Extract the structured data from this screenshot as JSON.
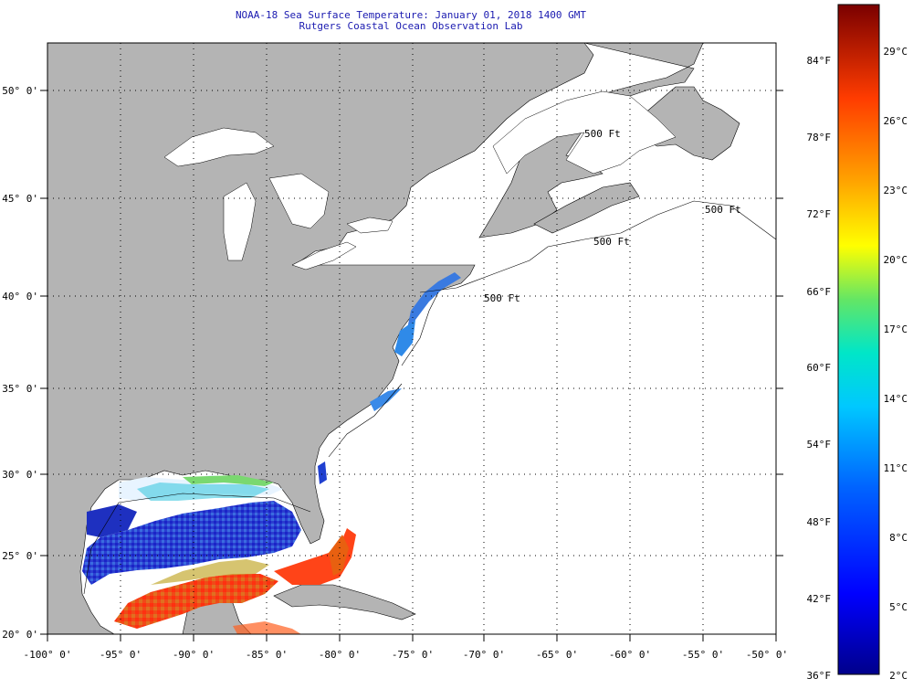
{
  "header": {
    "title": "NOAA-18 Sea Surface Temperature:  January 01, 2018 1400 GMT",
    "subtitle": "Rutgers Coastal Ocean Observation Lab"
  },
  "map": {
    "lon_ticks": [
      "-100° 0'",
      "-95° 0'",
      "-90° 0'",
      "-85° 0'",
      "-80° 0'",
      "-75° 0'",
      "-70° 0'",
      "-65° 0'",
      "-60° 0'",
      "-55° 0'",
      "-50° 0'"
    ],
    "lat_ticks": [
      "50° 0'",
      "45° 0'",
      "40° 0'",
      "35° 0'",
      "30° 0'",
      "25° 0'",
      "20° 0'"
    ],
    "isobath_labels": [
      "500 Ft",
      "500 Ft",
      "500 Ft",
      "500 Ft"
    ],
    "colors": {
      "land": "#b4b4b4",
      "ocean_no_data": "#ffffff",
      "grid": "#000000"
    }
  },
  "colorbar": {
    "fahrenheit_labels": [
      "84°F",
      "78°F",
      "72°F",
      "66°F",
      "60°F",
      "54°F",
      "48°F",
      "42°F",
      "36°F"
    ],
    "celsius_labels": [
      "29°C",
      "26°C",
      "23°C",
      "20°C",
      "17°C",
      "14°C",
      "11°C",
      "8°C",
      "5°C",
      "2°C"
    ]
  }
}
